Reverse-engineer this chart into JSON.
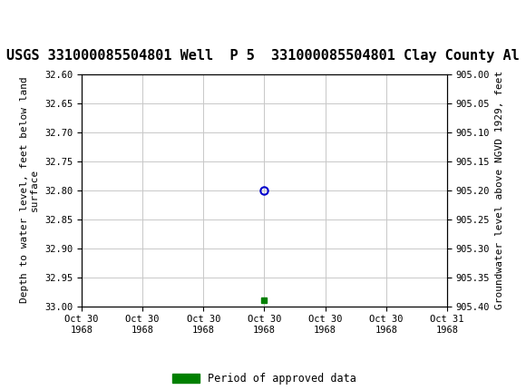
{
  "title": "USGS 331000085504801 Well  P 5  331000085504801 Clay County Al",
  "ylabel_left": "Depth to water level, feet below land\nsurface",
  "ylabel_right": "Groundwater level above NGVD 1929, feet",
  "ylim_left": [
    32.6,
    33.0
  ],
  "ylim_right": [
    905.4,
    905.0
  ],
  "yticks_left": [
    32.6,
    32.65,
    32.7,
    32.75,
    32.8,
    32.85,
    32.9,
    32.95,
    33.0
  ],
  "yticks_right": [
    905.4,
    905.35,
    905.3,
    905.25,
    905.2,
    905.15,
    905.1,
    905.05,
    905.0
  ],
  "ytick_labels_right": [
    "905.40",
    "905.35",
    "905.30",
    "905.25",
    "905.20",
    "905.15",
    "905.10",
    "905.05",
    "905.00"
  ],
  "xlim": [
    0,
    6
  ],
  "xtick_labels": [
    "Oct 30\n1968",
    "Oct 30\n1968",
    "Oct 30\n1968",
    "Oct 30\n1968",
    "Oct 30\n1968",
    "Oct 30\n1968",
    "Oct 31\n1968"
  ],
  "xtick_positions": [
    0,
    1,
    2,
    3,
    4,
    5,
    6
  ],
  "data_point_x": 3,
  "data_point_y": 32.8,
  "data_point_color": "#0000cc",
  "green_marker_x": 3,
  "green_marker_y": 32.99,
  "green_marker_color": "#008000",
  "background_color": "#ffffff",
  "plot_bg_color": "#ffffff",
  "grid_color": "#c8c8c8",
  "header_color": "#1a6b3c",
  "title_fontsize": 11,
  "axis_label_fontsize": 8,
  "tick_fontsize": 7.5,
  "legend_label": "Period of approved data",
  "legend_color": "#008000"
}
